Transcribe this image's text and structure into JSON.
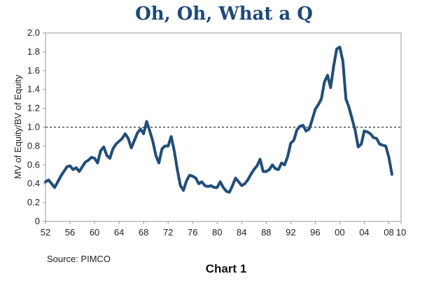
{
  "chart_data": {
    "type": "line",
    "title": "Oh, Oh, What a Q",
    "ylabel": "MV of Equity/BV of Equity",
    "xlabel": "",
    "xlim": [
      1952,
      2010
    ],
    "ylim": [
      0,
      2.0
    ],
    "grid": false,
    "x_ticks": [
      1952,
      1956,
      1960,
      1964,
      1968,
      1972,
      1976,
      1980,
      1984,
      1988,
      1992,
      1996,
      2000,
      2004,
      2008,
      2010
    ],
    "x_tick_labels": [
      "52",
      "56",
      "60",
      "64",
      "68",
      "72",
      "76",
      "80",
      "84",
      "88",
      "92",
      "96",
      "00",
      "04",
      "08",
      "10"
    ],
    "y_ticks": [
      0,
      0.2,
      0.4,
      0.6,
      0.8,
      1.0,
      1.2,
      1.4,
      1.6,
      1.8,
      2.0
    ],
    "y_tick_labels": [
      "0",
      "0.2",
      "0.4",
      "0.6",
      "0.8",
      "1.0",
      "1.2",
      "1.4",
      "1.6",
      "1.8",
      "2.0"
    ],
    "reference_line": {
      "y": 1.0,
      "style": "dashed"
    },
    "series": [
      {
        "name": "Q",
        "color": "#1f4e7e",
        "x": [
          1952.0,
          1952.5,
          1953.0,
          1953.5,
          1954.0,
          1954.5,
          1955.0,
          1955.5,
          1956.0,
          1956.5,
          1957.0,
          1957.5,
          1958.0,
          1958.5,
          1959.0,
          1959.5,
          1960.0,
          1960.5,
          1961.0,
          1961.5,
          1962.0,
          1962.5,
          1963.0,
          1963.5,
          1964.0,
          1964.5,
          1965.0,
          1965.5,
          1966.0,
          1966.5,
          1967.0,
          1967.5,
          1968.0,
          1968.5,
          1969.0,
          1969.5,
          1970.0,
          1970.5,
          1971.0,
          1971.5,
          1972.0,
          1972.5,
          1973.0,
          1973.5,
          1974.0,
          1974.5,
          1975.0,
          1975.5,
          1976.0,
          1976.5,
          1977.0,
          1977.5,
          1978.0,
          1978.5,
          1979.0,
          1979.5,
          1980.0,
          1980.5,
          1981.0,
          1981.5,
          1982.0,
          1982.5,
          1983.0,
          1983.5,
          1984.0,
          1984.5,
          1985.0,
          1985.5,
          1986.0,
          1986.5,
          1987.0,
          1987.5,
          1988.0,
          1988.5,
          1989.0,
          1989.5,
          1990.0,
          1990.5,
          1991.0,
          1991.5,
          1992.0,
          1992.5,
          1993.0,
          1993.5,
          1994.0,
          1994.5,
          1995.0,
          1995.5,
          1996.0,
          1996.5,
          1997.0,
          1997.5,
          1998.0,
          1998.5,
          1999.0,
          1999.5,
          2000.0,
          2000.5,
          2001.0,
          2001.5,
          2002.0,
          2002.5,
          2003.0,
          2003.5,
          2004.0,
          2004.5,
          2005.0,
          2005.5,
          2006.0,
          2006.5,
          2007.0,
          2007.5,
          2008.0,
          2008.5
        ],
        "y": [
          0.42,
          0.44,
          0.4,
          0.36,
          0.42,
          0.48,
          0.53,
          0.58,
          0.59,
          0.55,
          0.57,
          0.53,
          0.58,
          0.63,
          0.65,
          0.68,
          0.67,
          0.62,
          0.75,
          0.79,
          0.7,
          0.67,
          0.77,
          0.82,
          0.85,
          0.88,
          0.93,
          0.88,
          0.78,
          0.86,
          0.94,
          0.98,
          0.93,
          1.06,
          0.96,
          0.85,
          0.7,
          0.62,
          0.77,
          0.8,
          0.8,
          0.9,
          0.75,
          0.55,
          0.38,
          0.33,
          0.43,
          0.49,
          0.48,
          0.46,
          0.4,
          0.42,
          0.38,
          0.37,
          0.38,
          0.36,
          0.36,
          0.42,
          0.36,
          0.32,
          0.31,
          0.38,
          0.46,
          0.42,
          0.38,
          0.4,
          0.44,
          0.5,
          0.55,
          0.59,
          0.66,
          0.53,
          0.53,
          0.55,
          0.6,
          0.56,
          0.55,
          0.62,
          0.6,
          0.69,
          0.83,
          0.86,
          0.97,
          1.01,
          1.02,
          0.96,
          0.98,
          1.08,
          1.19,
          1.24,
          1.3,
          1.48,
          1.55,
          1.42,
          1.65,
          1.83,
          1.85,
          1.7,
          1.3,
          1.21,
          1.09,
          0.97,
          0.79,
          0.82,
          0.96,
          0.95,
          0.93,
          0.89,
          0.88,
          0.82,
          0.81,
          0.8,
          0.68,
          0.5
        ]
      }
    ]
  },
  "footer": {
    "source": "Source: PIMCO",
    "caption": "Chart 1"
  }
}
